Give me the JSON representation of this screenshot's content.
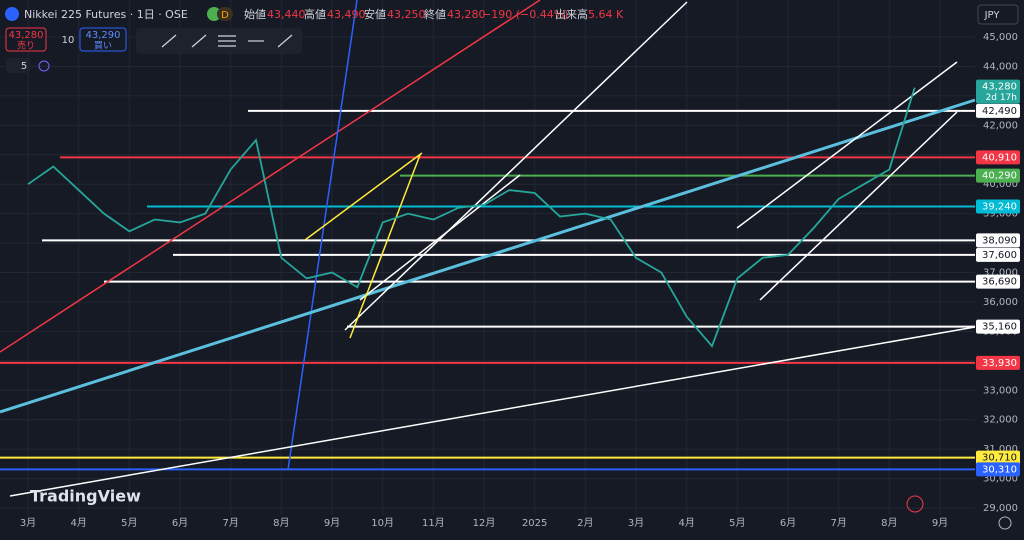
{
  "chart_data": {
    "type": "line",
    "symbol": "Nikkei 225 Futures · 1日 · OSE",
    "interval_badge": "D",
    "ohlc_labels": [
      {
        "name": "始値",
        "value": "43,440"
      },
      {
        "name": "高値",
        "value": "43,490"
      },
      {
        "name": "安値",
        "value": "43,250"
      },
      {
        "name": "終値",
        "value": "43,280"
      }
    ],
    "change": "−190 (−0.44%)",
    "volume_label": "出来高",
    "volume": "5.64 K",
    "sell_price": "43,280",
    "sell_label": "売り",
    "spread": "10",
    "buy_price": "43,290",
    "buy_label": "買い",
    "indicator_count": "5",
    "currency": "JPY",
    "logo": "TradingView",
    "categories": [
      "3月",
      null,
      "4月",
      null,
      "5月",
      null,
      "6月",
      null,
      "7月",
      null,
      "8月",
      null,
      "9月",
      null,
      "10月",
      null,
      "11月",
      null,
      "12月",
      null,
      "2025",
      null,
      "2月",
      null,
      "3月",
      null,
      "4月",
      null,
      "5月",
      null,
      "6月",
      null,
      "7月",
      null,
      "8月",
      null,
      "9月"
    ],
    "series": [
      {
        "name": "Nikkei 225 Futures",
        "color": "#26a69a",
        "values": [
          40000,
          40600,
          39800,
          39000,
          38400,
          38800,
          38700,
          39000,
          40500,
          41500,
          37500,
          36800,
          37000,
          36500,
          38700,
          39000,
          38800,
          39200,
          39300,
          39800,
          39700,
          38900,
          39000,
          38800,
          37500,
          37000,
          35500,
          34500,
          36800,
          37500,
          37600,
          38500,
          39500,
          40000,
          40500,
          43280,
          null
        ]
      }
    ],
    "last_price": {
      "value": 43280,
      "label": "43,280"
    },
    "countdown": "2d 17h",
    "levels": [
      {
        "value": 42490,
        "label": "42,490",
        "color": "#ffffff"
      },
      {
        "value": 40910,
        "label": "40,910",
        "color": "#f23645"
      },
      {
        "value": 40290,
        "label": "40,290",
        "color": "#4caf50"
      },
      {
        "value": 39240,
        "label": "39,240",
        "color": "#00bcd4"
      },
      {
        "value": 38090,
        "label": "38,090",
        "color": "#ffffff"
      },
      {
        "value": 37600,
        "label": "37,600",
        "color": "#ffffff"
      },
      {
        "value": 36690,
        "label": "36,690",
        "color": "#ffffff"
      },
      {
        "value": 35160,
        "label": "35,160",
        "color": "#ffffff"
      },
      {
        "value": 33930,
        "label": "33,930",
        "color": "#f23645"
      },
      {
        "value": 30710,
        "label": "30,710",
        "color": "#ffeb3b"
      },
      {
        "value": 30310,
        "label": "30,310",
        "color": "#2962ff"
      }
    ],
    "ylim": [
      29000,
      45000
    ],
    "yticks": [
      {
        "value": 29000,
        "label": "29,000"
      },
      {
        "value": 30000,
        "label": "30,000"
      },
      {
        "value": 31000,
        "label": "31,000"
      },
      {
        "value": 32000,
        "label": "32,000"
      },
      {
        "value": 33000,
        "label": "33,000"
      },
      {
        "value": 34000,
        "label": "34,000"
      },
      {
        "value": 35000,
        "label": "35,000"
      },
      {
        "value": 36000,
        "label": "36,000"
      },
      {
        "value": 37000,
        "label": "37,000"
      },
      {
        "value": 38000,
        "label": "38,000"
      },
      {
        "value": 39000,
        "label": "39,000"
      },
      {
        "value": 40000,
        "label": "40,000"
      },
      {
        "value": 41000,
        "label": "41,000"
      },
      {
        "value": 42000,
        "label": "42,000"
      },
      {
        "value": 43000,
        "label": "43,000"
      },
      {
        "value": 44000,
        "label": "44,000"
      },
      {
        "value": 45000,
        "label": "45,000"
      }
    ],
    "grid": true
  }
}
